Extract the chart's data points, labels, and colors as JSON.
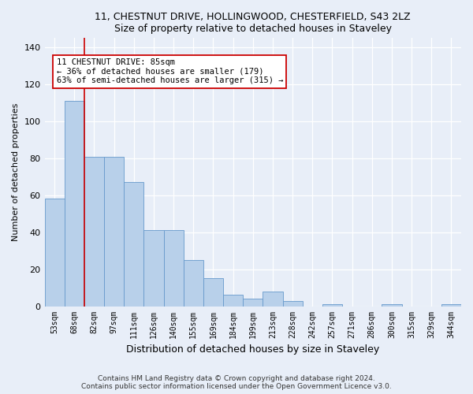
{
  "title_line1": "11, CHESTNUT DRIVE, HOLLINGWOOD, CHESTERFIELD, S43 2LZ",
  "title_line2": "Size of property relative to detached houses in Staveley",
  "xlabel": "Distribution of detached houses by size in Staveley",
  "ylabel": "Number of detached properties",
  "categories": [
    "53sqm",
    "68sqm",
    "82sqm",
    "97sqm",
    "111sqm",
    "126sqm",
    "140sqm",
    "155sqm",
    "169sqm",
    "184sqm",
    "199sqm",
    "213sqm",
    "228sqm",
    "242sqm",
    "257sqm",
    "271sqm",
    "286sqm",
    "300sqm",
    "315sqm",
    "329sqm",
    "344sqm"
  ],
  "values": [
    58,
    111,
    81,
    81,
    67,
    41,
    41,
    25,
    15,
    6,
    4,
    8,
    3,
    0,
    1,
    0,
    0,
    1,
    0,
    0,
    1
  ],
  "bar_color": "#b8d0ea",
  "bar_edge_color": "#6699cc",
  "vline_x": 1.5,
  "vline_color": "#cc0000",
  "annotation_line1": "11 CHESTNUT DRIVE: 85sqm",
  "annotation_line2": "← 36% of detached houses are smaller (179)",
  "annotation_line3": "63% of semi-detached houses are larger (315) →",
  "annotation_box_facecolor": "#ffffff",
  "annotation_box_edgecolor": "#cc0000",
  "ylim": [
    0,
    145
  ],
  "yticks": [
    0,
    20,
    40,
    60,
    80,
    100,
    120,
    140
  ],
  "footer_line1": "Contains HM Land Registry data © Crown copyright and database right 2024.",
  "footer_line2": "Contains public sector information licensed under the Open Government Licence v3.0.",
  "bg_color": "#e8eef8",
  "grid_color": "#ffffff",
  "title_fontsize": 9,
  "xlabel_fontsize": 9,
  "ylabel_fontsize": 8,
  "tick_fontsize": 7,
  "annotation_fontsize": 7.5,
  "footer_fontsize": 6.5
}
